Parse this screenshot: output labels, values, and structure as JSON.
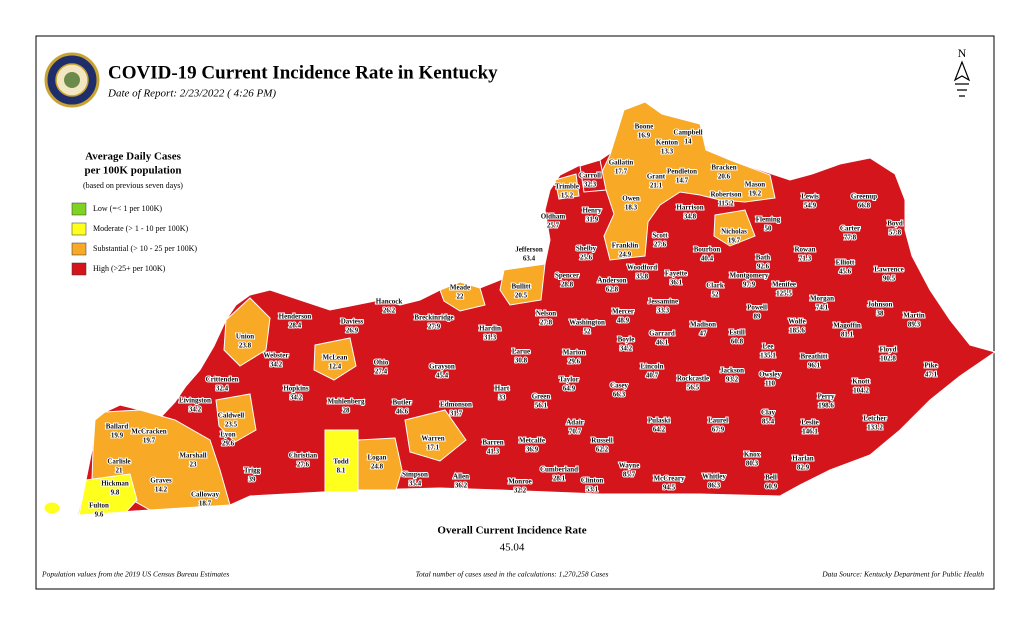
{
  "header": {
    "title": "COVID-19 Current Incidence Rate in Kentucky",
    "subtitle": "Date of Report: 2/23/2022 ( 4:26 PM)",
    "north_label": "N"
  },
  "legend": {
    "title_lines": [
      "Average Daily Cases",
      "per 100K population"
    ],
    "note": "(based on previous seven days)",
    "items": [
      {
        "label": "Low (=< 1 per 100K)",
        "color": "#7ed321"
      },
      {
        "label": "Moderate (> 1 - 10 per 100K)",
        "color": "#ffff1e"
      },
      {
        "label": "Substantial (> 10 - 25 per 100K)",
        "color": "#f8a925"
      },
      {
        "label": "High (>25+ per 100K)",
        "color": "#d4151c"
      }
    ]
  },
  "counties": [
    {
      "name": "Boone",
      "value": 16.9,
      "color": "#f8a925"
    },
    {
      "name": "Kenton",
      "value": 13.3,
      "color": "#f8a925"
    },
    {
      "name": "Campbell",
      "value": 14,
      "color": "#f8a925"
    },
    {
      "name": "Gallatin",
      "value": 17.7,
      "color": "#f8a925"
    },
    {
      "name": "Carroll",
      "value": 32.3,
      "color": "#d4151c"
    },
    {
      "name": "Trimble",
      "value": 15.2,
      "color": "#f8a925"
    },
    {
      "name": "Grant",
      "value": 21.1,
      "color": "#f8a925"
    },
    {
      "name": "Pendleton",
      "value": 14.7,
      "color": "#f8a925"
    },
    {
      "name": "Bracken",
      "value": 20.6,
      "color": "#f8a925"
    },
    {
      "name": "Mason",
      "value": 19.2,
      "color": "#f8a925"
    },
    {
      "name": "Robertson",
      "value": 115.2,
      "color": "#d4151c"
    },
    {
      "name": "Owen",
      "value": 18.3,
      "color": "#f8a925"
    },
    {
      "name": "Henry",
      "value": 31.9,
      "color": "#d4151c"
    },
    {
      "name": "Oldham",
      "value": 25.7,
      "color": "#d4151c"
    },
    {
      "name": "Harrison",
      "value": 34.8,
      "color": "#d4151c"
    },
    {
      "name": "Lewis",
      "value": 54.9,
      "color": "#d4151c"
    },
    {
      "name": "Greenup",
      "value": 66.8,
      "color": "#d4151c"
    },
    {
      "name": "Boyd",
      "value": 57.8,
      "color": "#d4151c"
    },
    {
      "name": "Carter",
      "value": 77.8,
      "color": "#d4151c"
    },
    {
      "name": "Fleming",
      "value": 50,
      "color": "#d4151c"
    },
    {
      "name": "Nicholas",
      "value": 19.7,
      "color": "#f8a925"
    },
    {
      "name": "Scott",
      "value": 27.6,
      "color": "#d4151c"
    },
    {
      "name": "Franklin",
      "value": 24.9,
      "color": "#f8a925"
    },
    {
      "name": "Shelby",
      "value": 25.6,
      "color": "#d4151c"
    },
    {
      "name": "Jefferson",
      "value": 63.4,
      "color": "#d4151c"
    },
    {
      "name": "Bourbon",
      "value": 40.4,
      "color": "#d4151c"
    },
    {
      "name": "Bath",
      "value": 92.6,
      "color": "#d4151c"
    },
    {
      "name": "Rowan",
      "value": 71.3,
      "color": "#d4151c"
    },
    {
      "name": "Elliott",
      "value": 45.6,
      "color": "#d4151c"
    },
    {
      "name": "Lawrence",
      "value": 90.5,
      "color": "#d4151c"
    },
    {
      "name": "Woodford",
      "value": 35.8,
      "color": "#d4151c"
    },
    {
      "name": "Fayette",
      "value": 36.1,
      "color": "#d4151c"
    },
    {
      "name": "Montgomery",
      "value": 97.9,
      "color": "#d4151c"
    },
    {
      "name": "Menifee",
      "value": 125.5,
      "color": "#d4151c"
    },
    {
      "name": "Anderson",
      "value": 62.8,
      "color": "#d4151c"
    },
    {
      "name": "Clark",
      "value": 52,
      "color": "#d4151c"
    },
    {
      "name": "Spencer",
      "value": 28.8,
      "color": "#d4151c"
    },
    {
      "name": "Bullitt",
      "value": 20.5,
      "color": "#f8a925"
    },
    {
      "name": "Meade",
      "value": 22,
      "color": "#f8a925"
    },
    {
      "name": "Hancock",
      "value": 26.2,
      "color": "#d4151c"
    },
    {
      "name": "Henderson",
      "value": 28.4,
      "color": "#d4151c"
    },
    {
      "name": "Daviess",
      "value": 26.9,
      "color": "#d4151c"
    },
    {
      "name": "Breckinridge",
      "value": 27.9,
      "color": "#d4151c"
    },
    {
      "name": "Morgan",
      "value": 74.1,
      "color": "#d4151c"
    },
    {
      "name": "Johnson",
      "value": 38,
      "color": "#d4151c"
    },
    {
      "name": "Martin",
      "value": 89.3,
      "color": "#d4151c"
    },
    {
      "name": "Mercer",
      "value": 48.9,
      "color": "#d4151c"
    },
    {
      "name": "Jessamine",
      "value": 33.3,
      "color": "#d4151c"
    },
    {
      "name": "Powell",
      "value": 89,
      "color": "#d4151c"
    },
    {
      "name": "Nelson",
      "value": 27.8,
      "color": "#d4151c"
    },
    {
      "name": "Washington",
      "value": 52,
      "color": "#d4151c"
    },
    {
      "name": "Wolfe",
      "value": 185.6,
      "color": "#d4151c"
    },
    {
      "name": "Magoffin",
      "value": 81.1,
      "color": "#d4151c"
    },
    {
      "name": "Hardin",
      "value": 31.3,
      "color": "#d4151c"
    },
    {
      "name": "Madison",
      "value": 47,
      "color": "#d4151c"
    },
    {
      "name": "Estill",
      "value": 60.8,
      "color": "#d4151c"
    },
    {
      "name": "Union",
      "value": 23.8,
      "color": "#f8a925"
    },
    {
      "name": "Boyle",
      "value": 34.2,
      "color": "#d4151c"
    },
    {
      "name": "Garrard",
      "value": 46.1,
      "color": "#d4151c"
    },
    {
      "name": "Lee",
      "value": 135.1,
      "color": "#d4151c"
    },
    {
      "name": "Floyd",
      "value": 102.8,
      "color": "#d4151c"
    },
    {
      "name": "Webster",
      "value": 34.2,
      "color": "#d4151c"
    },
    {
      "name": "McLean",
      "value": 12.4,
      "color": "#f8a925"
    },
    {
      "name": "Ohio",
      "value": 27.4,
      "color": "#d4151c"
    },
    {
      "name": "Larue",
      "value": 30.8,
      "color": "#d4151c"
    },
    {
      "name": "Marion",
      "value": 29.6,
      "color": "#d4151c"
    },
    {
      "name": "Breathitt",
      "value": 96.1,
      "color": "#d4151c"
    },
    {
      "name": "Grayson",
      "value": 45.4,
      "color": "#d4151c"
    },
    {
      "name": "Lincoln",
      "value": 40.7,
      "color": "#d4151c"
    },
    {
      "name": "Jackson",
      "value": 93.2,
      "color": "#d4151c"
    },
    {
      "name": "Owsley",
      "value": 110,
      "color": "#d4151c"
    },
    {
      "name": "Crittenden",
      "value": 32.4,
      "color": "#d4151c"
    },
    {
      "name": "Taylor",
      "value": 64.9,
      "color": "#d4151c"
    },
    {
      "name": "Rockcastle",
      "value": 56.5,
      "color": "#d4151c"
    },
    {
      "name": "Knott",
      "value": 104.2,
      "color": "#d4151c"
    },
    {
      "name": "Pike",
      "value": 47.1,
      "color": "#d4151c"
    },
    {
      "name": "Hopkins",
      "value": 34.2,
      "color": "#d4151c"
    },
    {
      "name": "Hart",
      "value": 33,
      "color": "#d4151c"
    },
    {
      "name": "Casey",
      "value": 66.3,
      "color": "#d4151c"
    },
    {
      "name": "Perry",
      "value": 198.6,
      "color": "#d4151c"
    },
    {
      "name": "Livingston",
      "value": 34.2,
      "color": "#d4151c"
    },
    {
      "name": "Muhlenberg",
      "value": 28,
      "color": "#d4151c"
    },
    {
      "name": "Butler",
      "value": 46.6,
      "color": "#d4151c"
    },
    {
      "name": "Edmonson",
      "value": 31.7,
      "color": "#d4151c"
    },
    {
      "name": "Green",
      "value": 56.1,
      "color": "#d4151c"
    },
    {
      "name": "Caldwell",
      "value": 23.5,
      "color": "#f8a925"
    },
    {
      "name": "Clay",
      "value": 85.4,
      "color": "#d4151c"
    },
    {
      "name": "Ballard",
      "value": 19.9,
      "color": "#f8a925"
    },
    {
      "name": "McCracken",
      "value": 19.7,
      "color": "#f8a925"
    },
    {
      "name": "Lyon",
      "value": 29.6,
      "color": "#d4151c"
    },
    {
      "name": "Adair",
      "value": 70.7,
      "color": "#d4151c"
    },
    {
      "name": "Pulaski",
      "value": 64.2,
      "color": "#d4151c"
    },
    {
      "name": "Laurel",
      "value": 67.9,
      "color": "#d4151c"
    },
    {
      "name": "Leslie",
      "value": 146.1,
      "color": "#d4151c"
    },
    {
      "name": "Letcher",
      "value": 133.2,
      "color": "#d4151c"
    },
    {
      "name": "Warren",
      "value": 17.1,
      "color": "#f8a925"
    },
    {
      "name": "Metcalfe",
      "value": 36.9,
      "color": "#d4151c"
    },
    {
      "name": "Russell",
      "value": 62.2,
      "color": "#d4151c"
    },
    {
      "name": "Barren",
      "value": 41.3,
      "color": "#d4151c"
    },
    {
      "name": "Marshall",
      "value": 23,
      "color": "#f8a925"
    },
    {
      "name": "Christian",
      "value": 27.6,
      "color": "#d4151c"
    },
    {
      "name": "Todd",
      "value": 8.1,
      "color": "#ffff1e"
    },
    {
      "name": "Logan",
      "value": 24.8,
      "color": "#f8a925"
    },
    {
      "name": "Harlan",
      "value": 82.9,
      "color": "#d4151c"
    },
    {
      "name": "Knox",
      "value": 80.3,
      "color": "#d4151c"
    },
    {
      "name": "Carlisle",
      "value": 21,
      "color": "#f8a925"
    },
    {
      "name": "Trigg",
      "value": 39,
      "color": "#d4151c"
    },
    {
      "name": "Wayne",
      "value": 85.7,
      "color": "#d4151c"
    },
    {
      "name": "Cumberland",
      "value": 28.1,
      "color": "#d4151c"
    },
    {
      "name": "Simpson",
      "value": 35.4,
      "color": "#d4151c"
    },
    {
      "name": "Allen",
      "value": 36.2,
      "color": "#d4151c"
    },
    {
      "name": "Graves",
      "value": 14.2,
      "color": "#f8a925"
    },
    {
      "name": "Hickman",
      "value": 9.8,
      "color": "#ffff1e"
    },
    {
      "name": "Monroe",
      "value": 32.2,
      "color": "#d4151c"
    },
    {
      "name": "Clinton",
      "value": 53.1,
      "color": "#d4151c"
    },
    {
      "name": "McCreary",
      "value": 94.5,
      "color": "#d4151c"
    },
    {
      "name": "Whitley",
      "value": 86.3,
      "color": "#d4151c"
    },
    {
      "name": "Bell",
      "value": 60.9,
      "color": "#d4151c"
    },
    {
      "name": "Calloway",
      "value": 18.7,
      "color": "#f8a925"
    },
    {
      "name": "Fulton",
      "value": 9.6,
      "color": "#ffff1e"
    }
  ],
  "overall": {
    "label": "Overall Current Incidence Rate",
    "value": 45.04
  },
  "footer": {
    "left": "Population values from the 2019 US Census Bureau Estimates",
    "center": "Total number of cases used in the calculations: 1,270,258 Cases",
    "right": "Data Source: Kentucky Department for Public Health"
  }
}
